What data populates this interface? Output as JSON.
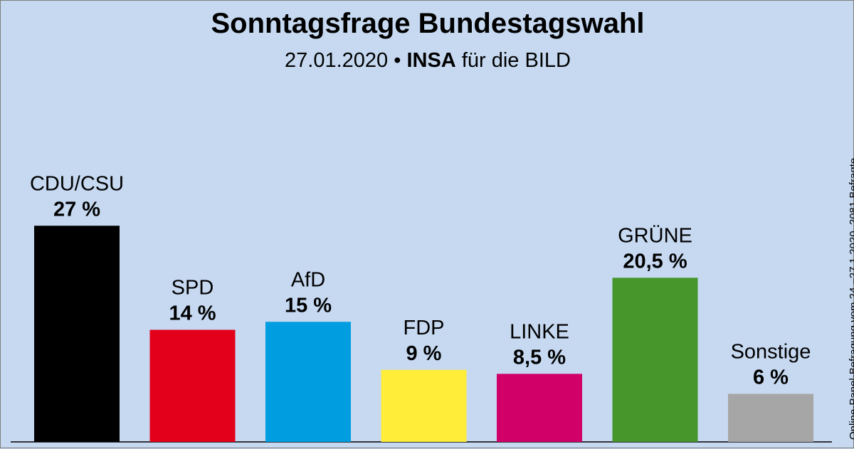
{
  "chart_data": {
    "type": "bar",
    "title": "Sonntagsfrage Bundestagswahl",
    "subtitle": {
      "date": "27.01.2020",
      "separator": "•",
      "institute": "INSA",
      "client": "für die BILD"
    },
    "source_note": "Online-Panel-Befragung vom 24.–27.1.2020, 2081 Befragte",
    "categories": [
      "CDU/CSU",
      "SPD",
      "AfD",
      "FDP",
      "LINKE",
      "GRÜNE",
      "Sonstige"
    ],
    "values": [
      27,
      14,
      15,
      9,
      8.5,
      20.5,
      6
    ],
    "value_labels": [
      "27 %",
      "14 %",
      "15 %",
      "9 %",
      "8,5 %",
      "20,5 %",
      "6 %"
    ],
    "colors": [
      "#000000",
      "#e3001b",
      "#009ee0",
      "#ffed39",
      "#d10069",
      "#46962b",
      "#a6a6a6"
    ],
    "ylim": [
      0,
      30
    ],
    "grid": false,
    "legend": "none"
  }
}
